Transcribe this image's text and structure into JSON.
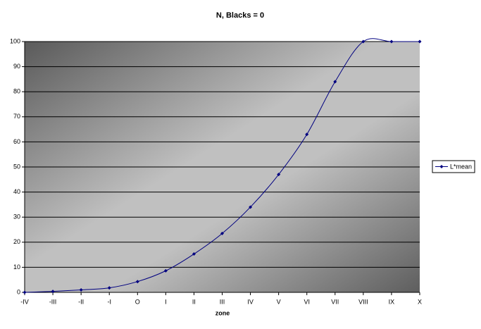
{
  "chart_data": {
    "type": "line",
    "title": "N, Blacks = 0",
    "x_label": "zone",
    "categories": [
      "-IV",
      "-III",
      "-II",
      "-I",
      "O",
      "I",
      "II",
      "III",
      "IV",
      "V",
      "VI",
      "VII",
      "VIII",
      "IX",
      "X"
    ],
    "series": [
      {
        "name": "L*mean",
        "color": "#000080",
        "values": [
          0,
          0.4,
          1,
          1.8,
          4.3,
          8.6,
          15.3,
          23.5,
          34,
          47,
          63,
          84,
          100,
          100,
          100
        ]
      }
    ],
    "ylim": [
      0,
      100
    ],
    "yticks": [
      0,
      10,
      20,
      30,
      40,
      50,
      60,
      70,
      80,
      90,
      100
    ],
    "grid": true,
    "legend": "right",
    "smooth": true
  }
}
